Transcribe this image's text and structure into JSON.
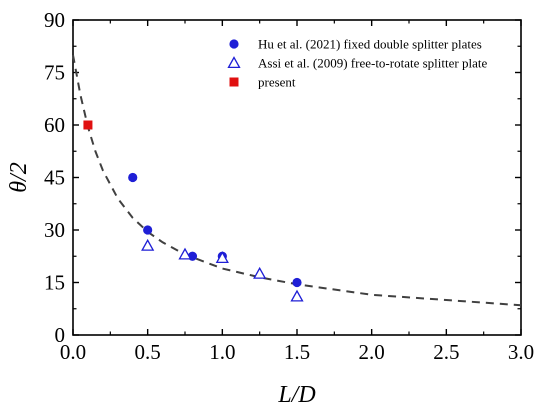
{
  "chart_data": {
    "type": "scatter",
    "xlabel": "L/D",
    "ylabel": "θ/2",
    "xlim": [
      0.0,
      3.0
    ],
    "ylim": [
      0,
      90
    ],
    "x_ticks": [
      0.0,
      0.5,
      1.0,
      1.5,
      2.0,
      2.5,
      3.0
    ],
    "x_tick_labels": [
      "0.0",
      "0.5",
      "1.0",
      "1.5",
      "2.0",
      "2.5",
      "3.0"
    ],
    "y_ticks": [
      0,
      15,
      30,
      45,
      60,
      75,
      90
    ],
    "y_tick_labels": [
      "0",
      "15",
      "30",
      "45",
      "60",
      "75",
      "90"
    ],
    "grid": false,
    "legend_position": "top-right",
    "series": [
      {
        "name": "Hu et al. (2021)   fixed double splitter plates",
        "marker": "filled-circle",
        "color": "#1f1fd6",
        "x": [
          0.4,
          0.5,
          0.8,
          1.0,
          1.5
        ],
        "y": [
          45,
          30,
          22.5,
          22.5,
          15
        ]
      },
      {
        "name": "Assi et al. (2009)  free-to-rotate splitter plate",
        "marker": "open-triangle",
        "color": "#1f1fd6",
        "x": [
          0.5,
          0.75,
          1.0,
          1.25,
          1.5
        ],
        "y": [
          25.5,
          23,
          22,
          17.5,
          11
        ]
      },
      {
        "name": "present",
        "marker": "filled-square",
        "color": "#e01010",
        "x": [
          0.1
        ],
        "y": [
          60
        ]
      }
    ],
    "fit_curve": {
      "style": "dashed",
      "color": "#404040",
      "x": [
        0.0,
        0.05,
        0.1,
        0.15,
        0.2,
        0.3,
        0.4,
        0.5,
        0.6,
        0.75,
        1.0,
        1.25,
        1.5,
        2.0,
        2.5,
        3.0
      ],
      "y": [
        80,
        68.5,
        59.5,
        52.5,
        47,
        39,
        33.5,
        29.5,
        26.5,
        23,
        19,
        16.5,
        14.5,
        11.5,
        10,
        8.5
      ]
    }
  }
}
